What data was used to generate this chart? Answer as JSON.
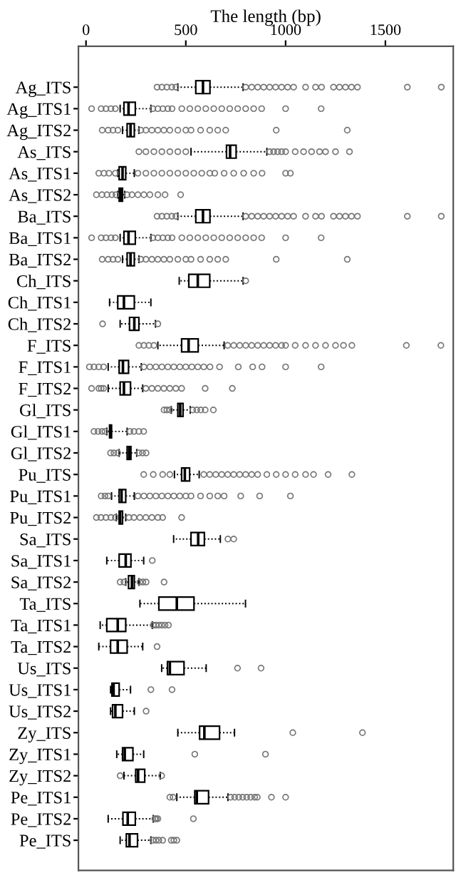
{
  "chart_data": {
    "type": "box",
    "orientation": "horizontal",
    "xlabel": "The length (bp)",
    "xlim": [
      -38,
      1840
    ],
    "xticks": [
      0,
      500,
      1000,
      1500
    ],
    "grid": false,
    "marker": "circle",
    "color": "#000000",
    "categories": [
      "Ag_ITS",
      "Ag_ITS1",
      "Ag_ITS2",
      "As_ITS",
      "As_ITS1",
      "As_ITS2",
      "Ba_ITS",
      "Ba_ITS1",
      "Ba_ITS2",
      "Ch_ITS",
      "Ch_ITS1",
      "Ch_ITS2",
      "F_ITS",
      "F_ITS1",
      "F_ITS2",
      "Gl_ITS",
      "Gl_ITS1",
      "Gl_ITS2",
      "Pu_ITS",
      "Pu_ITS1",
      "Pu_ITS2",
      "Sa_ITS",
      "Sa_ITS1",
      "Sa_ITS2",
      "Ta_ITS",
      "Ta_ITS1",
      "Ta_ITS2",
      "Us_ITS",
      "Us_ITS1",
      "Us_ITS2",
      "Zy_ITS",
      "Zy_ITS1",
      "Zy_ITS2",
      "Pe_ITS1",
      "Pe_ITS2",
      "Pe_ITS"
    ],
    "boxes": [
      {
        "low": 460,
        "q1": 550,
        "median": 586,
        "q3": 621,
        "high": 787,
        "outliers": [
          356,
          380,
          405,
          430,
          450,
          800,
          830,
          860,
          890,
          920,
          950,
          980,
          1010,
          1040,
          1100,
          1150,
          1180,
          1240,
          1270,
          1300,
          1330,
          1360,
          1610,
          1780
        ]
      },
      {
        "low": 171,
        "q1": 190,
        "median": 213,
        "q3": 247,
        "high": 325,
        "outliers": [
          28,
          76,
          100,
          125,
          147,
          335,
          360,
          385,
          410,
          431,
          480,
          520,
          560,
          600,
          640,
          680,
          720,
          760,
          800,
          840,
          880,
          1000,
          1178
        ]
      },
      {
        "low": 183,
        "q1": 206,
        "median": 223,
        "q3": 242,
        "high": 265,
        "outliers": [
          81,
          111,
          135,
          160,
          275,
          300,
          330,
          360,
          390,
          420,
          460,
          500,
          526,
          574,
          620,
          660,
          700,
          953,
          1309
        ]
      },
      {
        "low": 526,
        "q1": 704,
        "median": 722,
        "q3": 752,
        "high": 906,
        "outliers": [
          265,
          300,
          340,
          380,
          420,
          460,
          500,
          920,
          940,
          960,
          980,
          1000,
          1048,
          1090,
          1130,
          1170,
          1200,
          1250,
          1320
        ]
      },
      {
        "low": 159,
        "q1": 166,
        "median": 183,
        "q3": 199,
        "high": 242,
        "outliers": [
          64,
          90,
          115,
          147,
          260,
          300,
          340,
          380,
          420,
          460,
          500,
          540,
          580,
          620,
          645,
          692,
          740,
          790,
          840,
          882,
          1000,
          1024
        ]
      },
      {
        "low": 159,
        "q1": 166,
        "median": 173,
        "q3": 183,
        "high": 194,
        "outliers": [
          52,
          80,
          105,
          130,
          150,
          206,
          230,
          260,
          290,
          320,
          360,
          396,
          474
        ]
      },
      {
        "low": 460,
        "q1": 550,
        "median": 586,
        "q3": 621,
        "high": 787,
        "outliers": [
          356,
          380,
          405,
          430,
          450,
          800,
          830,
          860,
          890,
          920,
          950,
          980,
          1010,
          1040,
          1100,
          1150,
          1180,
          1240,
          1270,
          1300,
          1330,
          1360,
          1610,
          1780
        ]
      },
      {
        "low": 171,
        "q1": 190,
        "median": 213,
        "q3": 247,
        "high": 325,
        "outliers": [
          28,
          76,
          100,
          125,
          147,
          335,
          360,
          385,
          410,
          431,
          480,
          520,
          560,
          600,
          640,
          680,
          720,
          760,
          800,
          840,
          880,
          1000,
          1178
        ]
      },
      {
        "low": 183,
        "q1": 206,
        "median": 223,
        "q3": 242,
        "high": 265,
        "outliers": [
          81,
          111,
          135,
          160,
          275,
          300,
          330,
          360,
          390,
          420,
          460,
          500,
          526,
          574,
          620,
          660,
          700,
          953,
          1309
        ]
      },
      {
        "low": 467,
        "q1": 515,
        "median": 560,
        "q3": 620,
        "high": 787,
        "outliers": [
          800
        ]
      },
      {
        "low": 118,
        "q1": 159,
        "median": 190,
        "q3": 242,
        "high": 325
      },
      {
        "low": 171,
        "q1": 218,
        "median": 242,
        "q3": 265,
        "high": 348,
        "outliers": [
          83,
          360
        ]
      },
      {
        "low": 360,
        "q1": 479,
        "median": 514,
        "q3": 562,
        "high": 692,
        "outliers": [
          265,
          290,
          315,
          340,
          710,
          740,
          770,
          800,
          830,
          860,
          890,
          920,
          950,
          980,
          1000,
          1048,
          1100,
          1150,
          1200,
          1250,
          1290,
          1332,
          1605,
          1778
        ]
      },
      {
        "low": 111,
        "q1": 166,
        "median": 185,
        "q3": 213,
        "high": 277,
        "outliers": [
          17,
          40,
          64,
          88,
          290,
          320,
          350,
          380,
          410,
          440,
          470,
          500,
          530,
          560,
          590,
          621,
          669,
          763,
          835,
          882,
          1000,
          1178
        ]
      },
      {
        "low": 111,
        "q1": 171,
        "median": 190,
        "q3": 223,
        "high": 284,
        "outliers": [
          28,
          64,
          76,
          88,
          300,
          330,
          360,
          390,
          420,
          450,
          479,
          597,
          733
        ]
      },
      {
        "low": 427,
        "q1": 460,
        "median": 472,
        "q3": 486,
        "high": 522,
        "outliers": [
          391,
          405,
          420,
          535,
          555,
          575,
          597,
          638
        ]
      },
      {
        "low": 104,
        "q1": 118,
        "median": 123,
        "q3": 128,
        "high": 206,
        "outliers": [
          40,
          60,
          80,
          95,
          220,
          240,
          265,
          289
        ]
      },
      {
        "low": 166,
        "q1": 206,
        "median": 216,
        "q3": 225,
        "high": 254,
        "outliers": [
          123,
          140,
          159,
          265,
          283,
          301
        ]
      },
      {
        "low": 443,
        "q1": 479,
        "median": 495,
        "q3": 519,
        "high": 567,
        "outliers": [
          289,
          337,
          384,
          420,
          590,
          620,
          650,
          680,
          710,
          740,
          770,
          800,
          830,
          860,
          906,
          953,
          1000,
          1048,
          1100,
          1140,
          1213,
          1332
        ]
      },
      {
        "low": 128,
        "q1": 166,
        "median": 178,
        "q3": 199,
        "high": 242,
        "outliers": [
          76,
          95,
          111,
          260,
          290,
          320,
          350,
          380,
          410,
          440,
          470,
          500,
          526,
          574,
          620,
          660,
          692,
          775,
          870,
          1024
        ]
      },
      {
        "low": 152,
        "q1": 166,
        "median": 171,
        "q3": 183,
        "high": 199,
        "outliers": [
          52,
          75,
          100,
          125,
          147,
          215,
          240,
          270,
          300,
          330,
          360,
          384,
          479
        ]
      },
      {
        "low": 439,
        "q1": 526,
        "median": 562,
        "q3": 593,
        "high": 673,
        "outliers": [
          711,
          740
        ]
      },
      {
        "low": 104,
        "q1": 166,
        "median": 199,
        "q3": 225,
        "high": 289,
        "outliers": [
          332
        ]
      },
      {
        "low": 199,
        "q1": 213,
        "median": 230,
        "q3": 242,
        "high": 265,
        "outliers": [
          171,
          190,
          270,
          285,
          301,
          391
        ]
      },
      {
        "low": 270,
        "q1": 365,
        "median": 455,
        "q3": 541,
        "high": 799
      },
      {
        "low": 71,
        "q1": 104,
        "median": 159,
        "q3": 199,
        "high": 332,
        "outliers": [
          337,
          350,
          365,
          380,
          396,
          413
        ]
      },
      {
        "low": 64,
        "q1": 123,
        "median": 159,
        "q3": 206,
        "high": 284,
        "outliers": [
          356
        ]
      },
      {
        "low": 379,
        "q1": 408,
        "median": 420,
        "q3": 491,
        "high": 602,
        "outliers": [
          759,
          877
        ]
      },
      {
        "low": 123,
        "q1": 130,
        "median": 138,
        "q3": 166,
        "high": 223,
        "outliers": [
          325,
          431
        ]
      },
      {
        "low": 123,
        "q1": 133,
        "median": 147,
        "q3": 183,
        "high": 242,
        "outliers": [
          301
        ]
      },
      {
        "low": 460,
        "q1": 569,
        "median": 593,
        "q3": 669,
        "high": 744,
        "outliers": [
          1036,
          1385
        ]
      },
      {
        "low": 154,
        "q1": 183,
        "median": 194,
        "q3": 235,
        "high": 289,
        "outliers": [
          545,
          899
        ]
      },
      {
        "low": 190,
        "q1": 249,
        "median": 261,
        "q3": 294,
        "high": 372,
        "outliers": [
          171,
          379
        ]
      },
      {
        "low": 455,
        "q1": 545,
        "median": 555,
        "q3": 614,
        "high": 711,
        "outliers": [
          420,
          436,
          725,
          745,
          765,
          785,
          805,
          825,
          845,
          858,
          929,
          1000
        ]
      },
      {
        "low": 111,
        "q1": 185,
        "median": 209,
        "q3": 247,
        "high": 337,
        "outliers": [
          345,
          352,
          360,
          538
        ]
      },
      {
        "low": 171,
        "q1": 202,
        "median": 218,
        "q3": 258,
        "high": 325,
        "outliers": [
          335,
          350,
          365,
          384,
          427,
          440,
          455
        ]
      }
    ]
  }
}
